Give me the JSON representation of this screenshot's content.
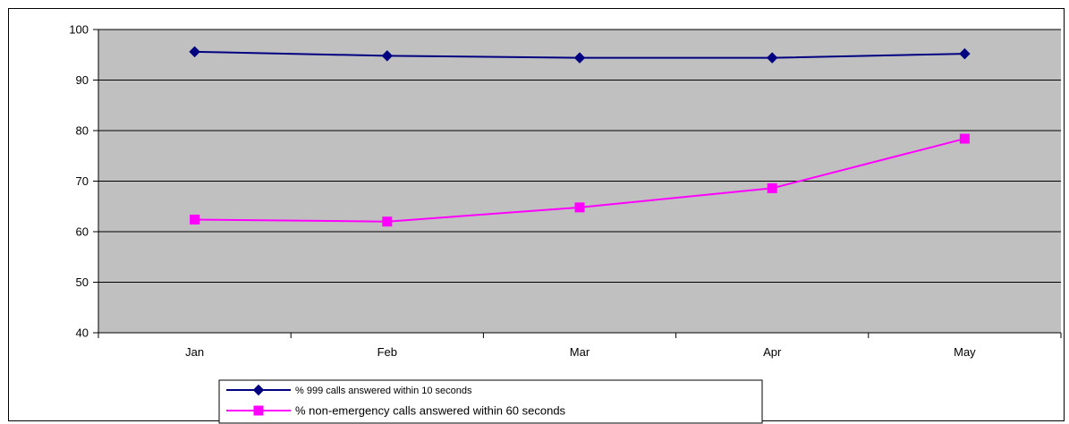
{
  "chart_data": {
    "type": "line",
    "categories": [
      "Jan",
      "Feb",
      "Mar",
      "Apr",
      "May"
    ],
    "ylim": [
      40,
      100
    ],
    "yticks": [
      40,
      50,
      60,
      70,
      80,
      90,
      100
    ],
    "grid": true,
    "plot_background": "#C0C0C0",
    "legend_position": "bottom",
    "series": [
      {
        "name": "% 999 calls answered within 10 seconds",
        "values": [
          95.6,
          94.8,
          94.4,
          94.4,
          95.2
        ],
        "color": "#000080",
        "marker": "diamond"
      },
      {
        "name": "% non-emergency calls answered within 60 seconds",
        "values": [
          62.4,
          62.0,
          64.8,
          68.6,
          78.4
        ],
        "color": "#FF00FF",
        "marker": "square"
      }
    ]
  }
}
